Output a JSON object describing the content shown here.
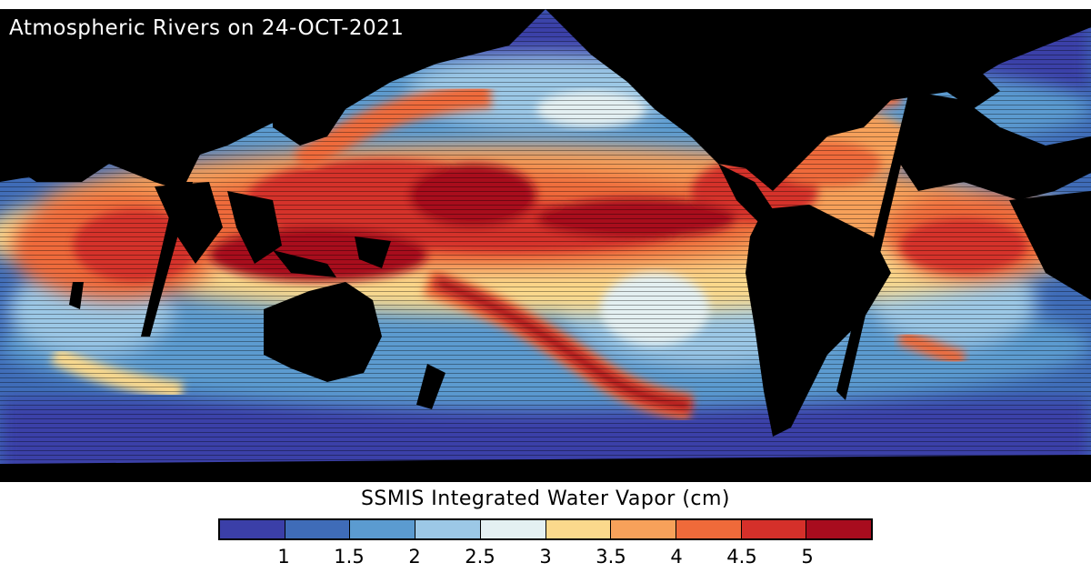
{
  "map": {
    "title": "Atmospheric Rivers on 24-OCT-2021",
    "land_color": "#000000"
  },
  "legend": {
    "title": "SSMIS Integrated Water Vapor (cm)",
    "colors": [
      "#3b3fa8",
      "#3f6cb8",
      "#5b9bd0",
      "#9cc8e6",
      "#e4f0f2",
      "#fbd98c",
      "#f7a15a",
      "#ef6a3a",
      "#d5302a",
      "#a80c1e"
    ],
    "ticks": [
      "1",
      "1.5",
      "2",
      "2.5",
      "3",
      "3.5",
      "4",
      "4.5",
      "5"
    ]
  }
}
